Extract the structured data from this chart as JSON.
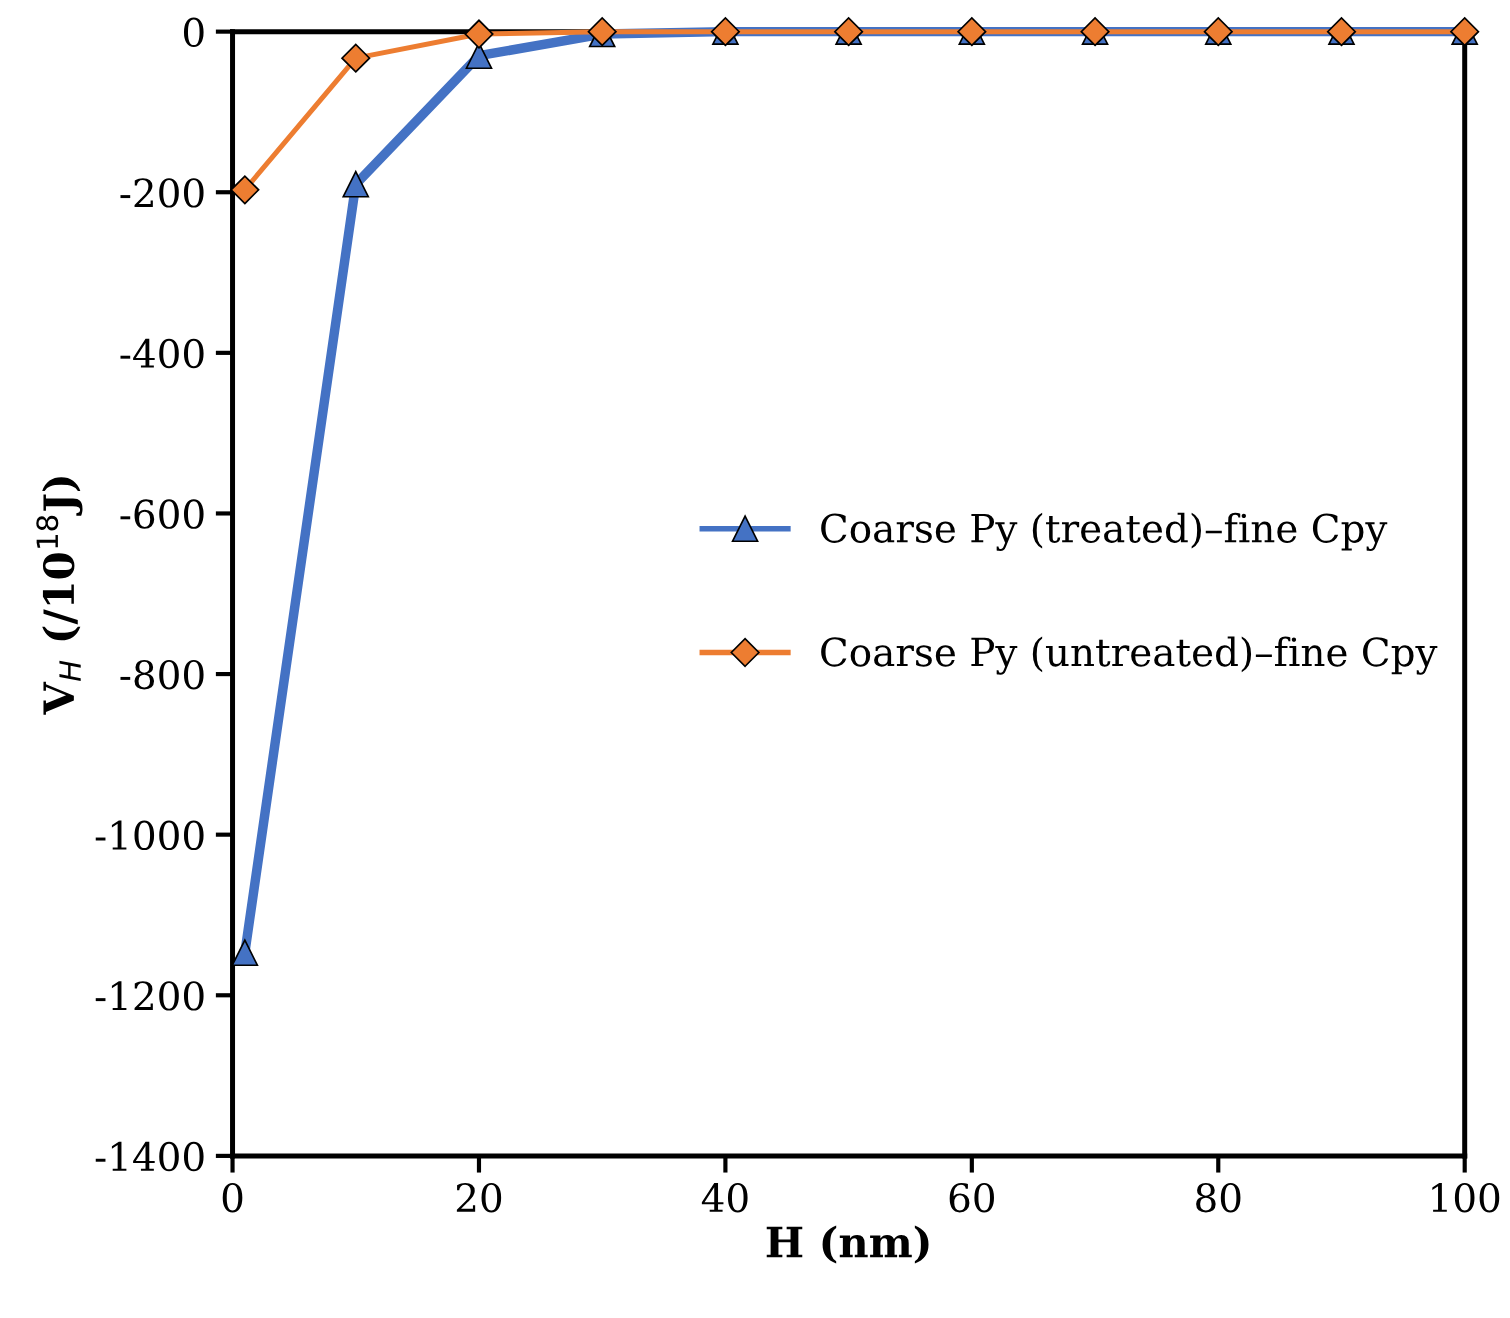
{
  "chart_data": {
    "type": "line",
    "xlabel": "H (nm)",
    "ylabel": "V$_{H}$ (/10$^{18}$J)",
    "x": [
      1,
      10,
      20,
      30,
      40,
      50,
      60,
      70,
      80,
      90,
      100
    ],
    "series": [
      {
        "name": "Coarse Py (treated)–fine Cpy",
        "color": "#4472c4",
        "marker": "triangle",
        "values": [
          -1147,
          -190,
          -30,
          -3,
          0,
          0,
          0,
          0,
          0,
          0,
          0
        ]
      },
      {
        "name": "Coarse Py (untreated)–fine Cpy",
        "color": "#ed7d31",
        "marker": "diamond",
        "values": [
          -197,
          -33,
          -3,
          0,
          0,
          0,
          0,
          0,
          0,
          0,
          0
        ]
      }
    ],
    "xlim": [
      0,
      100
    ],
    "xticks": [
      0,
      20,
      40,
      60,
      80,
      100
    ],
    "ylim": [
      -1400,
      0
    ],
    "yticks": [
      -1400,
      -1200,
      -1000,
      -800,
      -600,
      -400,
      -200,
      0
    ],
    "grid": false,
    "legend": "right",
    "line_style": "solid"
  }
}
